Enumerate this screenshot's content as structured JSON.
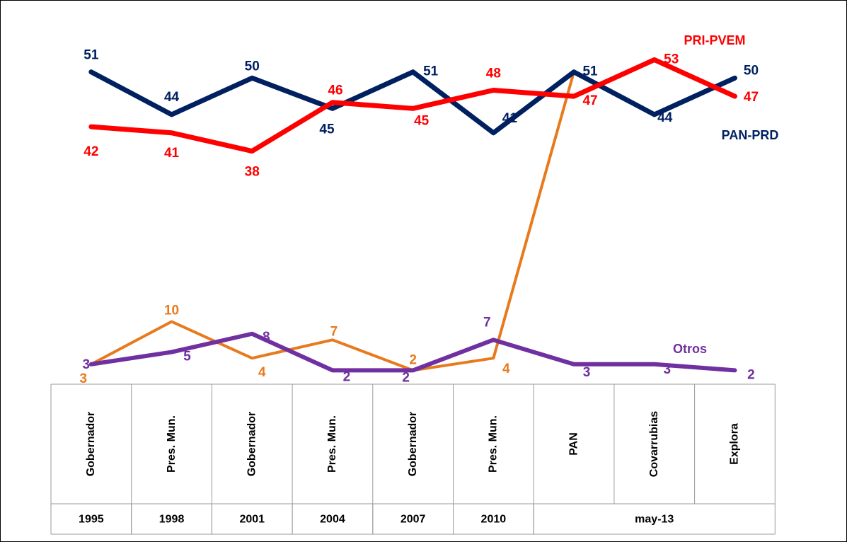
{
  "chart_data": {
    "type": "line",
    "categories": [
      "Gobernador",
      "Pres. Mun.",
      "Gobernador",
      "Pres. Mun.",
      "Gobernador",
      "Pres. Mun.",
      "PAN",
      "Covarrubias",
      "Explora"
    ],
    "x_groups": [
      {
        "label": "1995",
        "count": 1
      },
      {
        "label": "1998",
        "count": 1
      },
      {
        "label": "2001",
        "count": 1
      },
      {
        "label": "2004",
        "count": 1
      },
      {
        "label": "2007",
        "count": 1
      },
      {
        "label": "2010",
        "count": 1
      },
      {
        "label": "may-13",
        "count": 3
      }
    ],
    "ylim": [
      0,
      62
    ],
    "series": [
      {
        "name": "PAN-PRD",
        "color": "#002060",
        "values": [
          51,
          44,
          50,
          45,
          51,
          41,
          51,
          44,
          50
        ]
      },
      {
        "name": "PRI-PVEM",
        "color": "#ff0000",
        "values": [
          42,
          41,
          38,
          46,
          45,
          48,
          47,
          53,
          47
        ]
      },
      {
        "color": "#e87a1e",
        "values": [
          3,
          10,
          4,
          7,
          2,
          4,
          51,
          null,
          null
        ],
        "value_labels": [
          "3",
          "10",
          "4",
          "7",
          "2",
          "4",
          null,
          null,
          null
        ]
      },
      {
        "name": "Otros",
        "color": "#7030a0",
        "values": [
          3,
          5,
          8,
          2,
          2,
          7,
          3,
          3,
          2
        ]
      }
    ]
  }
}
